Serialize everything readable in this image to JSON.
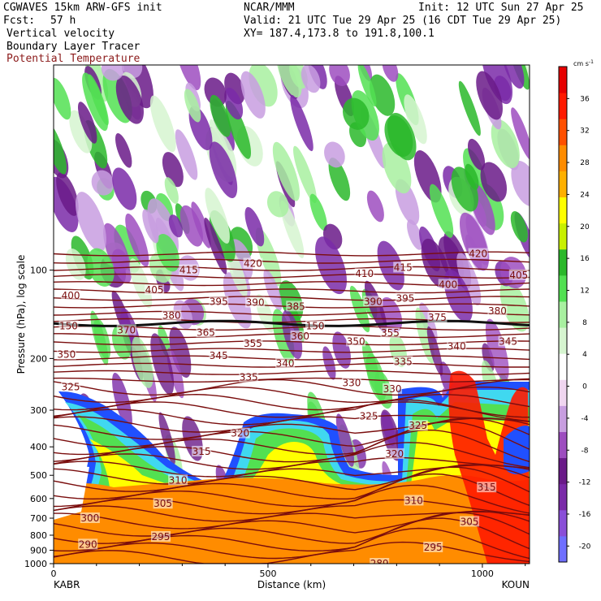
{
  "header": {
    "model": "CGWAVES 15km ARW-GFS init",
    "org": "NCAR/MMM",
    "init": "Init: 12 UTC Sun 27 Apr 25",
    "fcst_label": "Fcst:",
    "fcst_value": "57 h",
    "valid": "Valid: 21 UTC Tue 29 Apr 25 (16 CDT Tue 29 Apr 25)",
    "field1": "Vertical velocity",
    "xy": "XY= 187.4,173.8 to 191.8,100.1",
    "field2": "Boundary Layer Tracer",
    "field3": "Potential Temperature"
  },
  "colors": {
    "theta": "#7a0d0d",
    "field3_text": "#8b1a1a"
  },
  "chart_data": {
    "type": "heatmap",
    "title": "",
    "xlabel": "Distance (km)",
    "ylabel": "Pressure (hPa), log scale",
    "xlim": [
      0,
      1110
    ],
    "ylim": [
      1000,
      20
    ],
    "yscale": "log",
    "x_ticks": [
      "0",
      "500",
      "1000"
    ],
    "x_tick_values": [
      0,
      500,
      1000
    ],
    "y_ticks": [
      "100",
      "200",
      "300",
      "400",
      "500",
      "600",
      "700",
      "800",
      "900",
      "1000"
    ],
    "y_tick_values": [
      100,
      200,
      300,
      400,
      500,
      600,
      700,
      800,
      900,
      1000
    ],
    "x_endpoints": {
      "left": "KABR",
      "right": "KOUN"
    },
    "colorbar": {
      "unit": "cm s",
      "unit_exp": "-1",
      "levels": [
        -20,
        -16,
        -12,
        -8,
        -4,
        0,
        4,
        8,
        12,
        16,
        20,
        24,
        28,
        32,
        36
      ],
      "labels": [
        "-20",
        "-16",
        "-12",
        "-8",
        "-4",
        "0",
        "4",
        "8",
        "12",
        "16",
        "20",
        "24",
        "28",
        "32",
        "36"
      ],
      "colors": [
        "#6f6fff",
        "#8a4fd8",
        "#7a2aa8",
        "#6a1a88",
        "#9d4dbf",
        "#c89ee0",
        "#f0d6f0",
        "#ffffff",
        "#d6f5d0",
        "#a8f0a0",
        "#52e052",
        "#2ab82a",
        "#c8f000",
        "#ffff00",
        "#ffb000",
        "#ff8c00",
        "#ff5000",
        "#ff1a00",
        "#e60000"
      ]
    },
    "theta_contour_labels": [
      {
        "text": "420",
        "x": 465,
        "p": 95
      },
      {
        "text": "415",
        "x": 315,
        "p": 100
      },
      {
        "text": "415",
        "x": 815,
        "p": 98
      },
      {
        "text": "420",
        "x": 990,
        "p": 88
      },
      {
        "text": "410",
        "x": 725,
        "p": 103
      },
      {
        "text": "405",
        "x": 1085,
        "p": 104
      },
      {
        "text": "400",
        "x": 40,
        "p": 122
      },
      {
        "text": "405",
        "x": 235,
        "p": 117
      },
      {
        "text": "400",
        "x": 920,
        "p": 112
      },
      {
        "text": "395",
        "x": 385,
        "p": 128
      },
      {
        "text": "390",
        "x": 470,
        "p": 129
      },
      {
        "text": "385",
        "x": 565,
        "p": 133
      },
      {
        "text": "390",
        "x": 745,
        "p": 128
      },
      {
        "text": "395",
        "x": 820,
        "p": 125
      },
      {
        "text": "380",
        "x": 275,
        "p": 143
      },
      {
        "text": "380",
        "x": 1035,
        "p": 138
      },
      {
        "text": "375",
        "x": 895,
        "p": 145
      },
      {
        "text": "370",
        "x": 170,
        "p": 160
      },
      {
        "text": "365",
        "x": 355,
        "p": 163
      },
      {
        "text": "360",
        "x": 575,
        "p": 168
      },
      {
        "text": "355",
        "x": 465,
        "p": 178
      },
      {
        "text": "355",
        "x": 785,
        "p": 164
      },
      {
        "text": "350",
        "x": 30,
        "p": 194
      },
      {
        "text": "350",
        "x": 705,
        "p": 175
      },
      {
        "text": "345",
        "x": 385,
        "p": 196
      },
      {
        "text": "345",
        "x": 1060,
        "p": 175
      },
      {
        "text": "340",
        "x": 540,
        "p": 208
      },
      {
        "text": "340",
        "x": 940,
        "p": 182
      },
      {
        "text": "335",
        "x": 455,
        "p": 232
      },
      {
        "text": "335",
        "x": 815,
        "p": 205
      },
      {
        "text": "330",
        "x": 695,
        "p": 242
      },
      {
        "text": "330",
        "x": 790,
        "p": 254
      },
      {
        "text": "325",
        "x": 40,
        "p": 250
      },
      {
        "text": "325",
        "x": 735,
        "p": 315
      },
      {
        "text": "325",
        "x": 850,
        "p": 339
      },
      {
        "text": "320",
        "x": 435,
        "p": 360
      },
      {
        "text": "320",
        "x": 795,
        "p": 423
      },
      {
        "text": "315",
        "x": 345,
        "p": 415
      },
      {
        "text": "315",
        "x": 1010,
        "p": 550
      },
      {
        "text": "310",
        "x": 290,
        "p": 520
      },
      {
        "text": "310",
        "x": 840,
        "p": 610
      },
      {
        "text": "305",
        "x": 255,
        "p": 625
      },
      {
        "text": "305",
        "x": 970,
        "p": 720
      },
      {
        "text": "300",
        "x": 85,
        "p": 700
      },
      {
        "text": "295",
        "x": 250,
        "p": 810
      },
      {
        "text": "295",
        "x": 885,
        "p": 880
      },
      {
        "text": "290",
        "x": 80,
        "p": 860
      },
      {
        "text": "289",
        "x": 760,
        "p": 1000
      },
      {
        "text": "150",
        "x": 35,
        "p": 155
      },
      {
        "text": "150",
        "x": 610,
        "p": 155
      }
    ]
  }
}
